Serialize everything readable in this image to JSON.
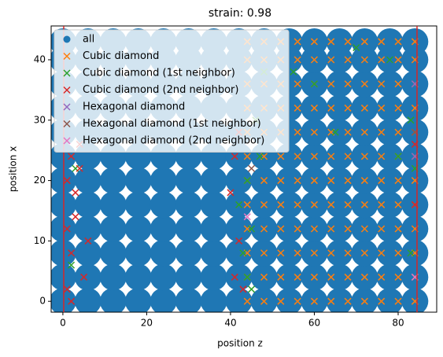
{
  "chart_data": {
    "type": "scatter",
    "title": "strain: 0.98",
    "xlabel": "position z",
    "ylabel": "position x",
    "xlim": [
      -2.8,
      89.2
    ],
    "ylim": [
      -1.8,
      45.6
    ],
    "xticks": [
      0,
      20,
      40,
      60,
      80
    ],
    "yticks": [
      0,
      10,
      20,
      30,
      40
    ],
    "vlines": [
      0.2,
      84.5
    ],
    "vline_color": "#d62728",
    "legend": "upper left",
    "series": [
      {
        "name": "all",
        "color": "#1f77b4",
        "marker": "o",
        "x": [
          0,
          6,
          12,
          18,
          24,
          30,
          36,
          42,
          48,
          54,
          60,
          66,
          72,
          78,
          84,
          0,
          6,
          12,
          18,
          24,
          30,
          36,
          42,
          48,
          54,
          60,
          66,
          72,
          78,
          84,
          0,
          6,
          12,
          18,
          24,
          30,
          36,
          42,
          48,
          54,
          60,
          66,
          72,
          78,
          84,
          0,
          6,
          12,
          18,
          24,
          30,
          36,
          42,
          48,
          54,
          60,
          66,
          72,
          78,
          84,
          0,
          6,
          12,
          18,
          24,
          30,
          36,
          42,
          48,
          54,
          60,
          66,
          72,
          78,
          84,
          0,
          6,
          12,
          18,
          24,
          30,
          36,
          42,
          48,
          54,
          60,
          66,
          72,
          78,
          84,
          0,
          6,
          12,
          18,
          24,
          30,
          36,
          42,
          48,
          54,
          60,
          66,
          72,
          78,
          84,
          0,
          6,
          12,
          18,
          24,
          30,
          36,
          42,
          48,
          54,
          60,
          66,
          72,
          78,
          84,
          0,
          6,
          12,
          18,
          24,
          30,
          36,
          42,
          48,
          54,
          60,
          66,
          72,
          78,
          84,
          0,
          6,
          12,
          18,
          24,
          30,
          36,
          42,
          48,
          54,
          60,
          66,
          72,
          78,
          84,
          0,
          6,
          12,
          18,
          24,
          30,
          36,
          42,
          48,
          54,
          60,
          66,
          72,
          78,
          84,
          0,
          6,
          12,
          18,
          24,
          30,
          36,
          42,
          48,
          54,
          60,
          66,
          72,
          78,
          84
        ],
        "values": [
          0,
          0,
          0,
          0,
          0,
          0,
          0,
          0,
          0,
          0,
          0,
          0,
          0,
          0,
          0,
          4,
          4,
          4,
          4,
          4,
          4,
          4,
          4,
          4,
          4,
          4,
          4,
          4,
          4,
          4,
          8,
          8,
          8,
          8,
          8,
          8,
          8,
          8,
          8,
          8,
          8,
          8,
          8,
          8,
          8,
          12,
          12,
          12,
          12,
          12,
          12,
          12,
          12,
          12,
          12,
          12,
          12,
          12,
          12,
          12,
          16,
          16,
          16,
          16,
          16,
          16,
          16,
          16,
          16,
          16,
          16,
          16,
          16,
          16,
          16,
          20,
          20,
          20,
          20,
          20,
          20,
          20,
          20,
          20,
          20,
          20,
          20,
          20,
          20,
          20,
          24,
          24,
          24,
          24,
          24,
          24,
          24,
          24,
          24,
          24,
          24,
          24,
          24,
          24,
          24,
          28,
          28,
          28,
          28,
          28,
          28,
          28,
          28,
          28,
          28,
          28,
          28,
          28,
          28,
          28,
          32,
          32,
          32,
          32,
          32,
          32,
          32,
          32,
          32,
          32,
          32,
          32,
          32,
          32,
          32,
          36,
          36,
          36,
          36,
          36,
          36,
          36,
          36,
          36,
          36,
          36,
          36,
          36,
          36,
          36,
          40,
          40,
          40,
          40,
          40,
          40,
          40,
          40,
          40,
          40,
          40,
          40,
          40,
          40,
          40,
          43,
          43,
          43,
          43,
          43,
          43,
          43,
          43,
          43,
          43,
          43,
          43,
          43,
          43,
          43
        ]
      },
      {
        "name": "Cubic diamond",
        "color": "#ff7f0e",
        "marker": "x",
        "x": [
          44,
          48,
          52,
          56,
          60,
          64,
          68,
          72,
          76,
          80,
          84,
          44,
          48,
          52,
          56,
          60,
          64,
          68,
          72,
          76,
          80,
          84,
          44,
          48,
          52,
          56,
          60,
          64,
          68,
          72,
          76,
          80,
          84,
          44,
          48,
          52,
          56,
          60,
          64,
          68,
          72,
          76,
          80,
          84,
          44,
          48,
          52,
          56,
          60,
          64,
          68,
          72,
          76,
          80,
          84,
          44,
          48,
          52,
          56,
          60,
          64,
          68,
          72,
          76,
          80,
          84,
          44,
          48,
          52,
          56,
          60,
          64,
          68,
          72,
          76,
          80,
          84,
          44,
          48,
          52,
          56,
          60,
          64,
          68,
          72,
          76,
          80,
          84,
          44,
          48,
          52,
          56,
          60,
          64,
          68,
          72,
          76,
          80,
          84,
          44,
          48,
          52,
          56,
          60,
          64,
          68,
          72,
          76,
          80,
          84,
          44,
          48,
          52,
          56,
          60,
          64,
          68,
          72,
          76,
          80,
          84,
          44,
          48,
          52,
          56,
          60,
          64,
          68,
          72,
          76,
          80,
          84
        ],
        "values": [
          0,
          0,
          0,
          0,
          0,
          0,
          0,
          0,
          0,
          0,
          0,
          4,
          4,
          4,
          4,
          4,
          4,
          4,
          4,
          4,
          4,
          4,
          8,
          8,
          8,
          8,
          8,
          8,
          8,
          8,
          8,
          8,
          8,
          12,
          12,
          12,
          12,
          12,
          12,
          12,
          12,
          12,
          12,
          12,
          16,
          16,
          16,
          16,
          16,
          16,
          16,
          16,
          16,
          16,
          16,
          20,
          20,
          20,
          20,
          20,
          20,
          20,
          20,
          20,
          20,
          20,
          24,
          24,
          24,
          24,
          24,
          24,
          24,
          24,
          24,
          24,
          24,
          28,
          28,
          28,
          28,
          28,
          28,
          28,
          28,
          28,
          28,
          28,
          32,
          32,
          32,
          32,
          32,
          32,
          32,
          32,
          32,
          32,
          32,
          36,
          36,
          36,
          36,
          36,
          36,
          36,
          36,
          36,
          36,
          36,
          40,
          40,
          40,
          40,
          40,
          40,
          40,
          40,
          40,
          40,
          40,
          43,
          43,
          43,
          43,
          43,
          43,
          43,
          43,
          43,
          43,
          43
        ]
      },
      {
        "name": "Cubic diamond (1st neighbor)",
        "color": "#2ca02c",
        "marker": "x",
        "x": [
          44,
          45,
          43,
          46,
          47,
          44,
          42,
          48,
          65,
          70,
          84,
          83,
          55,
          60,
          80,
          2,
          3,
          45,
          83,
          78
        ],
        "values": [
          20,
          12,
          8,
          30,
          24,
          4,
          16,
          38,
          28,
          42,
          22,
          30,
          38,
          36,
          24,
          6,
          22,
          2,
          8,
          40
        ]
      },
      {
        "name": "Cubic diamond (2nd neighbor)",
        "color": "#d62728",
        "marker": "x",
        "x": [
          1,
          2,
          3,
          1,
          4,
          2,
          5,
          3,
          6,
          1,
          41,
          42,
          40,
          41,
          43,
          42,
          84,
          84,
          2,
          4
        ],
        "values": [
          2,
          8,
          14,
          20,
          26,
          24,
          4,
          18,
          10,
          12,
          4,
          10,
          18,
          24,
          2,
          28,
          26,
          16,
          0,
          22
        ]
      },
      {
        "name": "Hexagonal diamond",
        "color": "#9467bd",
        "marker": "x",
        "x": [
          84,
          84
        ],
        "values": [
          24,
          36
        ]
      },
      {
        "name": "Hexagonal diamond (1st neighbor)",
        "color": "#8c564b",
        "marker": "x",
        "x": [
          45,
          84
        ],
        "values": [
          22,
          28
        ]
      },
      {
        "name": "Hexagonal diamond (2nd neighbor)",
        "color": "#e377c2",
        "marker": "x",
        "x": [
          44,
          84
        ],
        "values": [
          14,
          4
        ]
      }
    ]
  }
}
